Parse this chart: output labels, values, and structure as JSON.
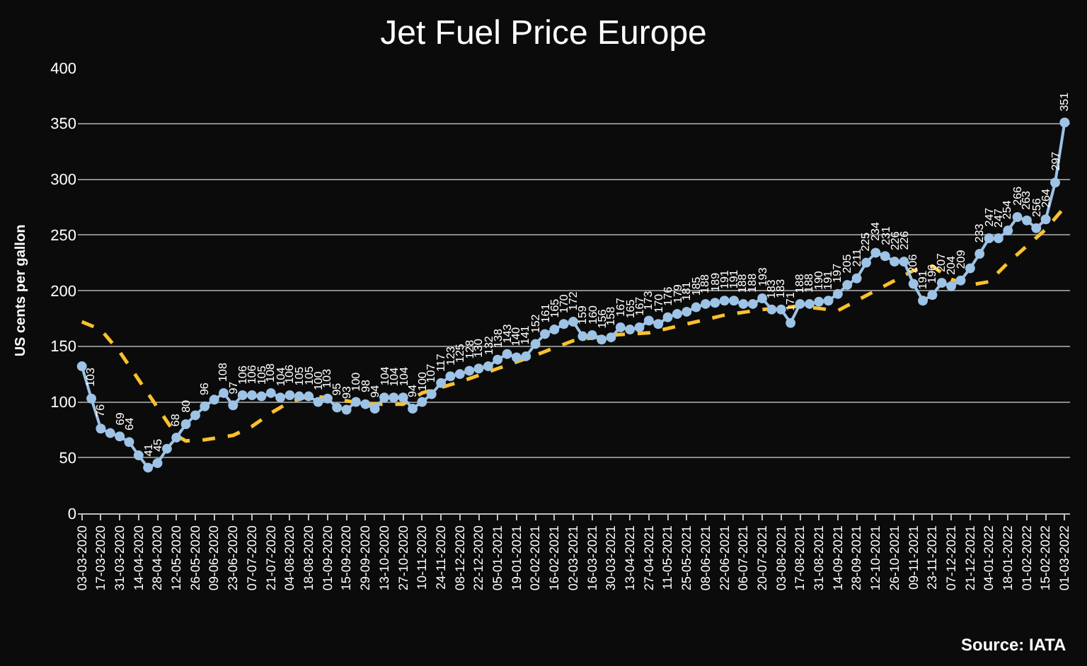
{
  "chart_data": {
    "type": "line",
    "title": "Jet Fuel Price Europe",
    "ylabel": "US cents per gallon",
    "annotations": [
      "Source: IATA"
    ],
    "xlim": [
      "2020-02-29",
      "2022-03-05"
    ],
    "xticks": [
      {
        "value": "2020-03-03",
        "label": "03-03-2020"
      },
      {
        "value": "2020-03-17",
        "label": "17-03-2020"
      },
      {
        "value": "2020-03-31",
        "label": "31-03-2020"
      },
      {
        "value": "2020-04-14",
        "label": "14-04-2020"
      },
      {
        "value": "2020-04-28",
        "label": "28-04-2020"
      },
      {
        "value": "2020-05-12",
        "label": "12-05-2020"
      },
      {
        "value": "2020-05-26",
        "label": "26-05-2020"
      },
      {
        "value": "2020-06-09",
        "label": "09-06-2020"
      },
      {
        "value": "2020-06-23",
        "label": "23-06-2020"
      },
      {
        "value": "2020-07-07",
        "label": "07-07-2020"
      },
      {
        "value": "2020-07-21",
        "label": "21-07-2020"
      },
      {
        "value": "2020-08-04",
        "label": "04-08-2020"
      },
      {
        "value": "2020-08-18",
        "label": "18-08-2020"
      },
      {
        "value": "2020-09-01",
        "label": "01-09-2020"
      },
      {
        "value": "2020-09-15",
        "label": "15-09-2020"
      },
      {
        "value": "2020-09-29",
        "label": "29-09-2020"
      },
      {
        "value": "2020-10-13",
        "label": "13-10-2020"
      },
      {
        "value": "2020-10-27",
        "label": "27-10-2020"
      },
      {
        "value": "2020-11-10",
        "label": "10-11-2020"
      },
      {
        "value": "2020-11-24",
        "label": "24-11-2020"
      },
      {
        "value": "2020-12-08",
        "label": "08-12-2020"
      },
      {
        "value": "2020-12-22",
        "label": "22-12-2020"
      },
      {
        "value": "2021-01-05",
        "label": "05-01-2021"
      },
      {
        "value": "2021-01-19",
        "label": "19-01-2021"
      },
      {
        "value": "2021-02-02",
        "label": "02-02-2021"
      },
      {
        "value": "2021-02-16",
        "label": "16-02-2021"
      },
      {
        "value": "2021-03-02",
        "label": "02-03-2021"
      },
      {
        "value": "2021-03-16",
        "label": "16-03-2021"
      },
      {
        "value": "2021-03-30",
        "label": "30-03-2021"
      },
      {
        "value": "2021-04-13",
        "label": "13-04-2021"
      },
      {
        "value": "2021-04-27",
        "label": "27-04-2021"
      },
      {
        "value": "2021-05-11",
        "label": "11-05-2021"
      },
      {
        "value": "2021-05-25",
        "label": "25-05-2021"
      },
      {
        "value": "2021-06-08",
        "label": "08-06-2021"
      },
      {
        "value": "2021-06-22",
        "label": "22-06-2021"
      },
      {
        "value": "2021-07-06",
        "label": "06-07-2021"
      },
      {
        "value": "2021-07-20",
        "label": "20-07-2021"
      },
      {
        "value": "2021-08-03",
        "label": "03-08-2021"
      },
      {
        "value": "2021-08-17",
        "label": "17-08-2021"
      },
      {
        "value": "2021-08-31",
        "label": "31-08-2021"
      },
      {
        "value": "2021-09-14",
        "label": "14-09-2021"
      },
      {
        "value": "2021-09-28",
        "label": "28-09-2021"
      },
      {
        "value": "2021-10-12",
        "label": "12-10-2021"
      },
      {
        "value": "2021-10-26",
        "label": "26-10-2021"
      },
      {
        "value": "2021-11-09",
        "label": "09-11-2021"
      },
      {
        "value": "2021-11-23",
        "label": "23-11-2021"
      },
      {
        "value": "2021-12-07",
        "label": "07-12-2021"
      },
      {
        "value": "2021-12-21",
        "label": "21-12-2021"
      },
      {
        "value": "2022-01-04",
        "label": "04-01-2022"
      },
      {
        "value": "2022-01-18",
        "label": "18-01-2022"
      },
      {
        "value": "2022-02-01",
        "label": "01-02-2022"
      },
      {
        "value": "2022-02-15",
        "label": "15-02-2022"
      },
      {
        "value": "2022-03-01",
        "label": "01-03-2022"
      }
    ],
    "ylim": [
      0,
      400
    ],
    "yticks": [
      0,
      50,
      100,
      150,
      200,
      250,
      300,
      350,
      400
    ],
    "grid": "y",
    "series": [
      {
        "color": "#fac12c",
        "line_style": "dashed",
        "marker": "none",
        "x": [
          "2020-03-03",
          "2020-03-17",
          "2020-03-31",
          "2020-04-14",
          "2020-04-28",
          "2020-05-12",
          "2020-05-19",
          "2020-06-02",
          "2020-06-23",
          "2020-07-07",
          "2020-07-21",
          "2020-08-04",
          "2020-08-18",
          "2020-09-01",
          "2020-09-29",
          "2020-10-27",
          "2020-11-10",
          "2020-12-08",
          "2021-01-05",
          "2021-02-02",
          "2021-03-02",
          "2021-03-30",
          "2021-04-27",
          "2021-05-25",
          "2021-06-22",
          "2021-07-20",
          "2021-08-17",
          "2021-09-14",
          "2021-10-12",
          "2021-11-09",
          "2021-11-23",
          "2021-12-07",
          "2021-12-21",
          "2022-01-04",
          "2022-01-18",
          "2022-02-01",
          "2022-02-15",
          "2022-03-01"
        ],
        "values": [
          172,
          165,
          145,
          120,
          95,
          70,
          65,
          66,
          70,
          78,
          90,
          100,
          105,
          104,
          98,
          98,
          108,
          118,
          130,
          142,
          155,
          160,
          162,
          170,
          178,
          183,
          186,
          182,
          200,
          218,
          222,
          210,
          205,
          208,
          225,
          240,
          255,
          275
        ]
      },
      {
        "color": "#9dc3e6",
        "line_style": "solid",
        "marker": "circle",
        "x": [
          "2020-03-03",
          "2020-03-10",
          "2020-03-17",
          "2020-03-24",
          "2020-03-31",
          "2020-04-07",
          "2020-04-14",
          "2020-04-21",
          "2020-04-28",
          "2020-05-05",
          "2020-05-12",
          "2020-05-19",
          "2020-05-26",
          "2020-06-02",
          "2020-06-09",
          "2020-06-16",
          "2020-06-23",
          "2020-06-30",
          "2020-07-07",
          "2020-07-14",
          "2020-07-21",
          "2020-07-28",
          "2020-08-04",
          "2020-08-11",
          "2020-08-18",
          "2020-08-25",
          "2020-09-01",
          "2020-09-08",
          "2020-09-15",
          "2020-09-22",
          "2020-09-29",
          "2020-10-06",
          "2020-10-13",
          "2020-10-20",
          "2020-10-27",
          "2020-11-03",
          "2020-11-10",
          "2020-11-17",
          "2020-11-24",
          "2020-12-01",
          "2020-12-08",
          "2020-12-15",
          "2020-12-22",
          "2020-12-29",
          "2021-01-05",
          "2021-01-12",
          "2021-01-19",
          "2021-01-26",
          "2021-02-02",
          "2021-02-09",
          "2021-02-16",
          "2021-02-23",
          "2021-03-02",
          "2021-03-09",
          "2021-03-16",
          "2021-03-23",
          "2021-03-30",
          "2021-04-06",
          "2021-04-13",
          "2021-04-20",
          "2021-04-27",
          "2021-05-04",
          "2021-05-11",
          "2021-05-18",
          "2021-05-25",
          "2021-06-01",
          "2021-06-08",
          "2021-06-15",
          "2021-06-22",
          "2021-06-29",
          "2021-07-06",
          "2021-07-13",
          "2021-07-20",
          "2021-07-27",
          "2021-08-03",
          "2021-08-10",
          "2021-08-17",
          "2021-08-24",
          "2021-08-31",
          "2021-09-07",
          "2021-09-14",
          "2021-09-21",
          "2021-09-28",
          "2021-10-05",
          "2021-10-12",
          "2021-10-19",
          "2021-10-26",
          "2021-11-02",
          "2021-11-09",
          "2021-11-16",
          "2021-11-23",
          "2021-11-30",
          "2021-12-07",
          "2021-12-14",
          "2021-12-21",
          "2021-12-28",
          "2022-01-04",
          "2022-01-11",
          "2022-01-18",
          "2022-01-25",
          "2022-02-01",
          "2022-02-08",
          "2022-02-15",
          "2022-02-22",
          "2022-03-01"
        ],
        "values": [
          132,
          103,
          76,
          72,
          69,
          64,
          52,
          41,
          45,
          58,
          68,
          80,
          88,
          96,
          102,
          108,
          97,
          106,
          106,
          105,
          108,
          104,
          106,
          105,
          105,
          100,
          103,
          95,
          93,
          100,
          98,
          94,
          104,
          104,
          104,
          94,
          100,
          107,
          117,
          123,
          125,
          128,
          130,
          132,
          138,
          143,
          140,
          141,
          152,
          161,
          165,
          170,
          172,
          159,
          160,
          156,
          158,
          167,
          165,
          167,
          173,
          170,
          176,
          179,
          181,
          185,
          188,
          189,
          191,
          191,
          188,
          188,
          193,
          183,
          183,
          171,
          188,
          188,
          190,
          191,
          197,
          205,
          211,
          225,
          234,
          231,
          226,
          226,
          206,
          191,
          196,
          207,
          204,
          209,
          220,
          233,
          247,
          247,
          254,
          266,
          263,
          256,
          264,
          297,
          351
        ],
        "value_labels": [
          null,
          "103",
          "76",
          null,
          "69",
          "64",
          null,
          "41",
          "45",
          null,
          "68",
          "80",
          null,
          "96",
          null,
          "108",
          "97",
          "106",
          "106",
          "105",
          "108",
          "104",
          "106",
          "105",
          "105",
          "100",
          "103",
          "95",
          "93",
          "100",
          "98",
          "94",
          "104",
          "104",
          "104",
          "94",
          "100",
          "107",
          "117",
          "123",
          "125",
          "128",
          "130",
          "132",
          "138",
          "143",
          "140",
          "141",
          "152",
          "161",
          "165",
          "170",
          "172",
          "159",
          "160",
          "156",
          "158",
          "167",
          "165",
          "167",
          "173",
          "170",
          "176",
          "179",
          "181",
          "185",
          "188",
          "189",
          "191",
          "191",
          "188",
          "188",
          "193",
          "183",
          "183",
          "171",
          "188",
          "188",
          "190",
          "191",
          "197",
          "205",
          "211",
          "225",
          "234",
          "231",
          "226",
          "226",
          "206",
          "191",
          "196",
          "207",
          "204",
          "209",
          null,
          "233",
          "247",
          "247",
          "254",
          "266",
          "263",
          "256",
          "264",
          "297",
          "351"
        ]
      }
    ]
  }
}
